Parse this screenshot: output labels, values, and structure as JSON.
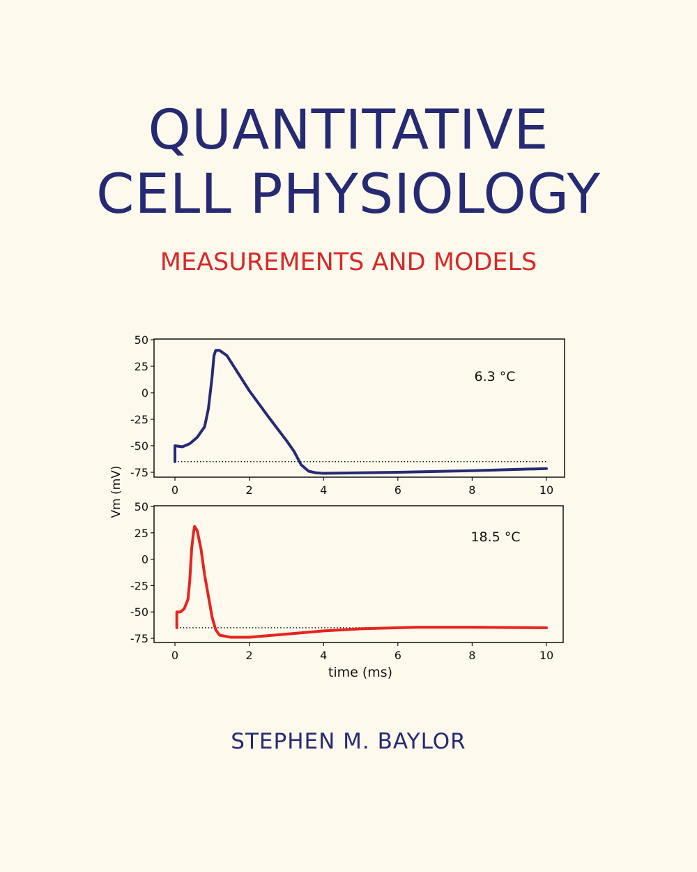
{
  "cover": {
    "title_line1": "QUANTITATIVE",
    "title_line2": "CELL PHYSIOLOGY",
    "subtitle": "MEASUREMENTS AND MODELS",
    "author": "STEPHEN M. BAYLOR"
  },
  "colors": {
    "title": "#262a73",
    "subtitle": "#d7292a",
    "background": "#fdf9ec"
  },
  "chart_data": [
    {
      "type": "line",
      "annotation": "6.3 °C",
      "ylabel": "Vm (mV)",
      "xlabel": "",
      "xlim": [
        0,
        10
      ],
      "ylim": [
        -75,
        50
      ],
      "xticks": [
        "0",
        "2",
        "4",
        "6",
        "8",
        "10"
      ],
      "yticks": [
        "50",
        "25",
        "0",
        "-25",
        "-50",
        "-75"
      ],
      "color": "#262a73",
      "rest_line": -65,
      "x": [
        0,
        0,
        0.2,
        0.4,
        0.6,
        0.8,
        0.9,
        1.0,
        1.05,
        1.1,
        1.2,
        1.4,
        2,
        2.5,
        3,
        3.2,
        3.4,
        3.6,
        3.8,
        4,
        6,
        8,
        10
      ],
      "y": [
        -65,
        -50,
        -51,
        -48,
        -42,
        -32,
        -15,
        15,
        35,
        40,
        40,
        35,
        2,
        -22,
        -45,
        -55,
        -68,
        -74,
        -75.5,
        -76,
        -75,
        -73.5,
        -71.5
      ]
    },
    {
      "type": "line",
      "annotation": "18.5 °C",
      "xlabel": "time (ms)",
      "xlim": [
        0,
        10
      ],
      "ylim": [
        -75,
        50
      ],
      "xticks": [
        "0",
        "2",
        "4",
        "6",
        "8",
        "10"
      ],
      "yticks": [
        "50",
        "25",
        "0",
        "-25",
        "-50",
        "-75"
      ],
      "color": "#e52421",
      "rest_line": -65,
      "x": [
        0.05,
        0.05,
        0.15,
        0.25,
        0.35,
        0.4,
        0.45,
        0.5,
        0.53,
        0.6,
        0.7,
        0.8,
        0.9,
        1.0,
        1.1,
        1.2,
        1.5,
        2,
        3,
        4,
        5,
        6.5,
        8,
        10
      ],
      "y": [
        -65,
        -50,
        -50,
        -47,
        -38,
        -20,
        10,
        25,
        31,
        27,
        10,
        -15,
        -35,
        -55,
        -67,
        -72,
        -74,
        -74,
        -71,
        -68,
        -66,
        -64.5,
        -64.5,
        -65
      ]
    }
  ]
}
